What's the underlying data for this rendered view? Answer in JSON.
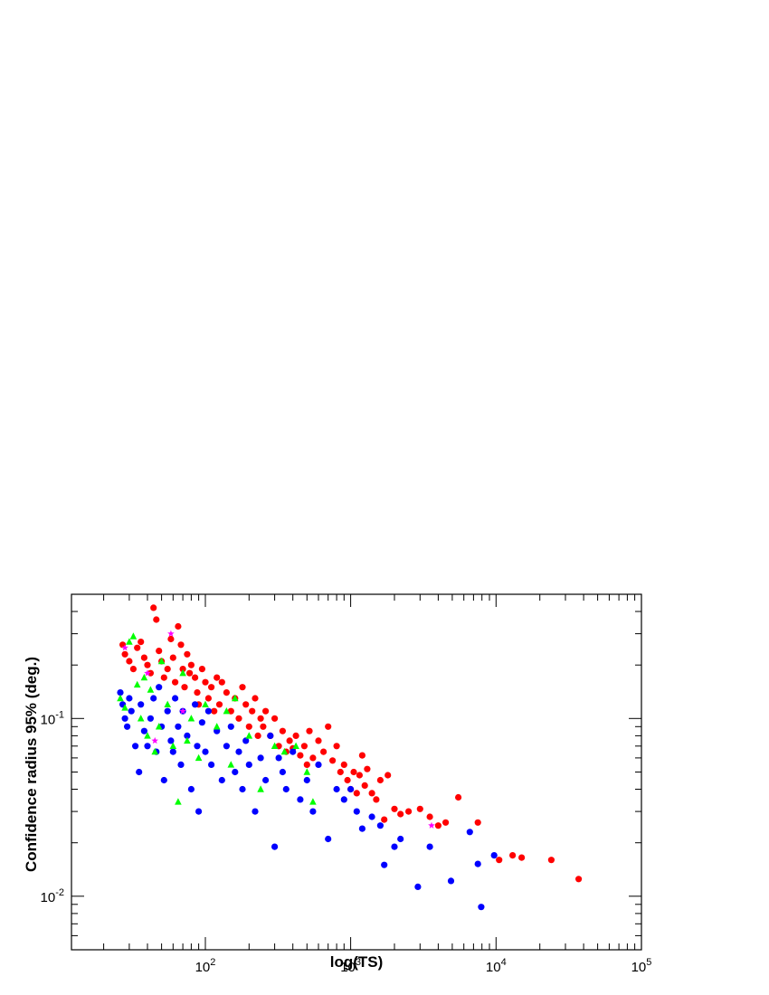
{
  "chart_data": {
    "type": "scatter",
    "title": "",
    "xlabel": "log(TS)",
    "ylabel": "Confidence radius 95% (deg.)",
    "x_scale": "log",
    "y_scale": "log",
    "xlim": [
      12,
      100000
    ],
    "ylim": [
      0.005,
      0.5
    ],
    "grid": false,
    "legend": "none",
    "x_ticks": [
      {
        "base": "10",
        "exp": "2",
        "value": 100
      },
      {
        "base": "10",
        "exp": "3",
        "value": 1000
      },
      {
        "base": "10",
        "exp": "4",
        "value": 10000
      },
      {
        "base": "10",
        "exp": "5",
        "value": 100000
      }
    ],
    "y_ticks": [
      {
        "base": "10",
        "exp": "-1",
        "value": 0.1
      },
      {
        "base": "10",
        "exp": "-2",
        "value": 0.01
      }
    ],
    "series": [
      {
        "color": "#ff0000",
        "marker": "circle",
        "points": [
          [
            27,
            0.26
          ],
          [
            28,
            0.23
          ],
          [
            30,
            0.21
          ],
          [
            32,
            0.19
          ],
          [
            34,
            0.25
          ],
          [
            36,
            0.27
          ],
          [
            38,
            0.22
          ],
          [
            40,
            0.2
          ],
          [
            42,
            0.18
          ],
          [
            44,
            0.42
          ],
          [
            46,
            0.36
          ],
          [
            48,
            0.24
          ],
          [
            50,
            0.21
          ],
          [
            52,
            0.17
          ],
          [
            55,
            0.19
          ],
          [
            58,
            0.28
          ],
          [
            60,
            0.22
          ],
          [
            62,
            0.16
          ],
          [
            65,
            0.33
          ],
          [
            68,
            0.26
          ],
          [
            70,
            0.19
          ],
          [
            72,
            0.15
          ],
          [
            75,
            0.23
          ],
          [
            78,
            0.18
          ],
          [
            80,
            0.2
          ],
          [
            85,
            0.17
          ],
          [
            88,
            0.14
          ],
          [
            90,
            0.12
          ],
          [
            95,
            0.19
          ],
          [
            100,
            0.16
          ],
          [
            105,
            0.13
          ],
          [
            110,
            0.15
          ],
          [
            115,
            0.11
          ],
          [
            120,
            0.17
          ],
          [
            125,
            0.12
          ],
          [
            130,
            0.16
          ],
          [
            140,
            0.14
          ],
          [
            150,
            0.11
          ],
          [
            160,
            0.13
          ],
          [
            170,
            0.1
          ],
          [
            180,
            0.15
          ],
          [
            190,
            0.12
          ],
          [
            200,
            0.09
          ],
          [
            210,
            0.11
          ],
          [
            220,
            0.13
          ],
          [
            230,
            0.08
          ],
          [
            240,
            0.1
          ],
          [
            250,
            0.09
          ],
          [
            260,
            0.11
          ],
          [
            280,
            0.08
          ],
          [
            300,
            0.1
          ],
          [
            320,
            0.07
          ],
          [
            340,
            0.085
          ],
          [
            360,
            0.065
          ],
          [
            380,
            0.075
          ],
          [
            400,
            0.068
          ],
          [
            420,
            0.08
          ],
          [
            450,
            0.062
          ],
          [
            480,
            0.07
          ],
          [
            500,
            0.055
          ],
          [
            520,
            0.085
          ],
          [
            550,
            0.06
          ],
          [
            600,
            0.075
          ],
          [
            650,
            0.065
          ],
          [
            700,
            0.09
          ],
          [
            750,
            0.058
          ],
          [
            800,
            0.07
          ],
          [
            850,
            0.05
          ],
          [
            900,
            0.055
          ],
          [
            950,
            0.045
          ],
          [
            1000,
            0.04
          ],
          [
            1050,
            0.05
          ],
          [
            1100,
            0.038
          ],
          [
            1150,
            0.048
          ],
          [
            1200,
            0.062
          ],
          [
            1250,
            0.042
          ],
          [
            1300,
            0.052
          ],
          [
            1400,
            0.038
          ],
          [
            1500,
            0.035
          ],
          [
            1600,
            0.045
          ],
          [
            1700,
            0.027
          ],
          [
            1800,
            0.048
          ],
          [
            2000,
            0.031
          ],
          [
            2200,
            0.029
          ],
          [
            2500,
            0.03
          ],
          [
            3000,
            0.031
          ],
          [
            3500,
            0.028
          ],
          [
            4000,
            0.025
          ],
          [
            4500,
            0.026
          ],
          [
            5500,
            0.036
          ],
          [
            7500,
            0.026
          ],
          [
            10500,
            0.016
          ],
          [
            13000,
            0.017
          ],
          [
            15000,
            0.0165
          ],
          [
            24000,
            0.016
          ],
          [
            37000,
            0.0125
          ]
        ]
      },
      {
        "color": "#0000ff",
        "marker": "circle",
        "points": [
          [
            26,
            0.14
          ],
          [
            27,
            0.12
          ],
          [
            28,
            0.1
          ],
          [
            29,
            0.09
          ],
          [
            30,
            0.13
          ],
          [
            31,
            0.11
          ],
          [
            33,
            0.07
          ],
          [
            35,
            0.05
          ],
          [
            36,
            0.12
          ],
          [
            38,
            0.085
          ],
          [
            40,
            0.07
          ],
          [
            42,
            0.1
          ],
          [
            44,
            0.13
          ],
          [
            46,
            0.065
          ],
          [
            48,
            0.15
          ],
          [
            50,
            0.09
          ],
          [
            52,
            0.045
          ],
          [
            55,
            0.11
          ],
          [
            58,
            0.075
          ],
          [
            60,
            0.065
          ],
          [
            62,
            0.13
          ],
          [
            65,
            0.09
          ],
          [
            68,
            0.055
          ],
          [
            70,
            0.11
          ],
          [
            75,
            0.08
          ],
          [
            80,
            0.04
          ],
          [
            85,
            0.12
          ],
          [
            88,
            0.07
          ],
          [
            90,
            0.03
          ],
          [
            95,
            0.095
          ],
          [
            100,
            0.065
          ],
          [
            105,
            0.11
          ],
          [
            110,
            0.055
          ],
          [
            120,
            0.085
          ],
          [
            130,
            0.045
          ],
          [
            140,
            0.07
          ],
          [
            150,
            0.09
          ],
          [
            160,
            0.05
          ],
          [
            170,
            0.065
          ],
          [
            180,
            0.04
          ],
          [
            190,
            0.075
          ],
          [
            200,
            0.055
          ],
          [
            220,
            0.03
          ],
          [
            240,
            0.06
          ],
          [
            260,
            0.045
          ],
          [
            280,
            0.08
          ],
          [
            300,
            0.019
          ],
          [
            320,
            0.06
          ],
          [
            340,
            0.05
          ],
          [
            360,
            0.04
          ],
          [
            400,
            0.065
          ],
          [
            450,
            0.035
          ],
          [
            500,
            0.045
          ],
          [
            550,
            0.03
          ],
          [
            600,
            0.055
          ],
          [
            700,
            0.021
          ],
          [
            800,
            0.04
          ],
          [
            900,
            0.035
          ],
          [
            1000,
            0.04
          ],
          [
            1100,
            0.03
          ],
          [
            1200,
            0.024
          ],
          [
            1400,
            0.028
          ],
          [
            1600,
            0.025
          ],
          [
            1700,
            0.015
          ],
          [
            2000,
            0.019
          ],
          [
            2200,
            0.021
          ],
          [
            2900,
            0.0113
          ],
          [
            3500,
            0.019
          ],
          [
            4900,
            0.0122
          ],
          [
            6600,
            0.023
          ],
          [
            7500,
            0.0152
          ],
          [
            7900,
            0.0087
          ],
          [
            9700,
            0.017
          ]
        ]
      },
      {
        "color": "#00ff00",
        "marker": "triangle",
        "points": [
          [
            26,
            0.13
          ],
          [
            28,
            0.115
          ],
          [
            30,
            0.27
          ],
          [
            32,
            0.29
          ],
          [
            34,
            0.155
          ],
          [
            36,
            0.1
          ],
          [
            38,
            0.17
          ],
          [
            40,
            0.08
          ],
          [
            42,
            0.145
          ],
          [
            45,
            0.065
          ],
          [
            48,
            0.09
          ],
          [
            50,
            0.21
          ],
          [
            55,
            0.12
          ],
          [
            60,
            0.07
          ],
          [
            65,
            0.034
          ],
          [
            70,
            0.18
          ],
          [
            75,
            0.075
          ],
          [
            80,
            0.1
          ],
          [
            90,
            0.06
          ],
          [
            100,
            0.12
          ],
          [
            120,
            0.09
          ],
          [
            140,
            0.11
          ],
          [
            150,
            0.055
          ],
          [
            160,
            0.13
          ],
          [
            200,
            0.08
          ],
          [
            240,
            0.04
          ],
          [
            300,
            0.07
          ],
          [
            350,
            0.065
          ],
          [
            420,
            0.07
          ],
          [
            500,
            0.05
          ],
          [
            550,
            0.034
          ]
        ]
      },
      {
        "color": "#ff00ff",
        "marker": "star",
        "points": [
          [
            28,
            0.25
          ],
          [
            40,
            0.18
          ],
          [
            45,
            0.075
          ],
          [
            58,
            0.3
          ],
          [
            70,
            0.11
          ],
          [
            3600,
            0.025
          ]
        ]
      }
    ]
  }
}
